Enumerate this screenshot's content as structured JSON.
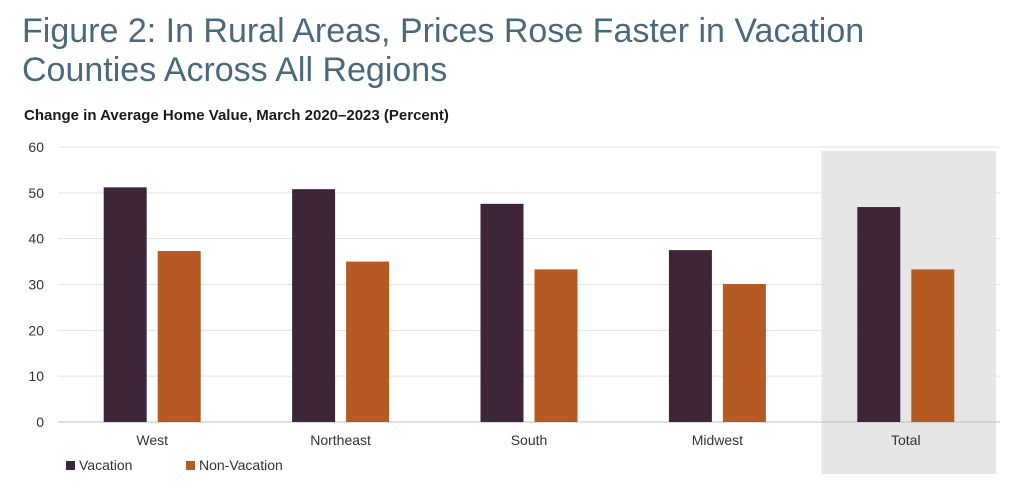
{
  "title": "Figure 2: In Rural Areas, Prices Rose Faster in Vacation Counties Across All Regions",
  "chart_data": {
    "type": "bar",
    "title": "Change in Average Home Value, March 2020–2023 (Percent)",
    "categories": [
      "West",
      "Northeast",
      "South",
      "Midwest",
      "Total"
    ],
    "highlighted_category": "Total",
    "series": [
      {
        "name": "Vacation",
        "color": "#3d2638",
        "values": [
          51.2,
          50.8,
          47.6,
          37.5,
          46.9
        ]
      },
      {
        "name": "Non-Vacation",
        "color": "#b45a22",
        "values": [
          37.3,
          35.0,
          33.3,
          30.1,
          33.3
        ]
      }
    ],
    "ylim": [
      0,
      60
    ],
    "yticks": [
      0,
      10,
      20,
      30,
      40,
      50,
      60
    ],
    "xlabel": "",
    "ylabel": "",
    "grid": true,
    "legend": "bottom-left"
  }
}
